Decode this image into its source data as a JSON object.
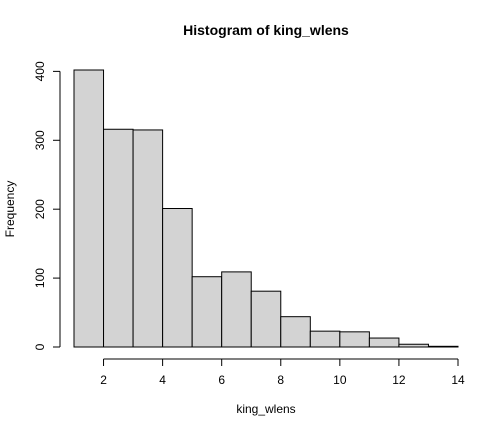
{
  "chart_data": {
    "type": "bar",
    "title": "Histogram of king_wlens",
    "xlabel": "king_wlens",
    "ylabel": "Frequency",
    "bins": [
      {
        "x0": 1,
        "x1": 2,
        "count": 402
      },
      {
        "x0": 2,
        "x1": 3,
        "count": 316
      },
      {
        "x0": 3,
        "x1": 4,
        "count": 315
      },
      {
        "x0": 4,
        "x1": 5,
        "count": 201
      },
      {
        "x0": 5,
        "x1": 6,
        "count": 102
      },
      {
        "x0": 6,
        "x1": 7,
        "count": 109
      },
      {
        "x0": 7,
        "x1": 8,
        "count": 81
      },
      {
        "x0": 8,
        "x1": 9,
        "count": 44
      },
      {
        "x0": 9,
        "x1": 10,
        "count": 23
      },
      {
        "x0": 10,
        "x1": 11,
        "count": 22
      },
      {
        "x0": 11,
        "x1": 12,
        "count": 13
      },
      {
        "x0": 12,
        "x1": 13,
        "count": 4
      },
      {
        "x0": 13,
        "x1": 14,
        "count": 1
      }
    ],
    "xticks": [
      2,
      4,
      6,
      8,
      10,
      12,
      14
    ],
    "yticks": [
      0,
      100,
      200,
      300,
      400
    ],
    "xlim": [
      1,
      14
    ],
    "ylim": [
      0,
      402
    ],
    "grid": false,
    "bar_color": "#d3d3d3"
  }
}
